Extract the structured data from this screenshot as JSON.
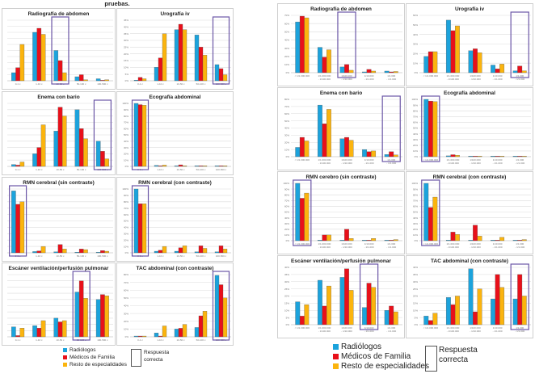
{
  "header": {
    "left_title_fragment": "pruebas."
  },
  "colors": {
    "radiologos": "#1ca3dc",
    "medicos_familia": "#e8101a",
    "resto": "#fbb40e",
    "correct_box": "#6b56a6",
    "grid": "#d9d9d9"
  },
  "legend": {
    "items": [
      {
        "label": "Radiólogos",
        "color": "#1ca3dc"
      },
      {
        "label": "Médicos de Familia",
        "color": "#e8101a"
      },
      {
        "label": "Resto de especialidades",
        "color": "#fbb40e"
      }
    ],
    "correct_label_1": "Respuesta",
    "correct_label_2": "correcta"
  },
  "chart_data": [
    {
      "panel": "left",
      "type": "bar",
      "title": "Radiografía de abdomen",
      "categories": [
        "0-1 c",
        "1-10 c",
        "10-50 c",
        "50-100 c",
        "100-500 c"
      ],
      "ylim": [
        0,
        60
      ],
      "yticks": [],
      "correct_index": 2,
      "series": [
        {
          "name": "Radiólogos",
          "values": [
            8,
            48,
            30,
            4,
            2
          ]
        },
        {
          "name": "Médicos de Familia",
          "values": [
            13,
            52,
            20,
            6,
            0.5
          ]
        },
        {
          "name": "Resto de especialidades",
          "values": [
            36,
            46,
            8,
            1,
            1
          ]
        }
      ]
    },
    {
      "panel": "left",
      "type": "bar",
      "title": "Urografía iv",
      "categories": [
        "0-1 c",
        "1-10 c",
        "10-50 c",
        "50-100 c",
        "100-500 c"
      ],
      "ylim": [
        0,
        45
      ],
      "yticks": [
        "0%",
        "5%",
        "10%",
        "15%",
        "20%",
        "25%",
        "30%",
        "35%",
        "40%",
        "45%"
      ],
      "correct_index": 4,
      "series": [
        {
          "name": "Radiólogos",
          "values": [
            0.5,
            10,
            38,
            34,
            12
          ]
        },
        {
          "name": "Médicos de Familia",
          "values": [
            2.5,
            17,
            42,
            25,
            9
          ]
        },
        {
          "name": "Resto de especialidades",
          "values": [
            1.5,
            35,
            38,
            19,
            4.5
          ]
        }
      ]
    },
    {
      "panel": "left",
      "type": "bar",
      "title": "Enema con bario",
      "categories": [
        "0-1 c",
        "1-10 c",
        "10-50 c",
        "50-100 c",
        "100-500 c"
      ],
      "ylim": [
        0,
        50
      ],
      "yticks": [],
      "correct_index": 4,
      "series": [
        {
          "name": "Radiólogos",
          "values": [
            1.5,
            10,
            28,
            45,
            20
          ]
        },
        {
          "name": "Médicos de Familia",
          "values": [
            1,
            15,
            47,
            30,
            12
          ]
        },
        {
          "name": "Resto de especialidades",
          "values": [
            3.5,
            33,
            40,
            22,
            6
          ]
        }
      ]
    },
    {
      "panel": "left",
      "type": "bar",
      "title": "Ecografía abdominal",
      "categories": [
        "0-1 c",
        "1-10 c",
        "10-50 c",
        "50-100 c",
        "100-500 c"
      ],
      "ylim": [
        0,
        100
      ],
      "yticks": [
        "0%",
        "10%",
        "20%",
        "30%",
        "40%",
        "50%",
        "60%",
        "70%",
        "80%",
        "90%",
        "100%"
      ],
      "correct_index": 0,
      "series": [
        {
          "name": "Radiólogos",
          "values": [
            100,
            1.5,
            1,
            1,
            1
          ]
        },
        {
          "name": "Médicos de Familia",
          "values": [
            98,
            1,
            2.5,
            1,
            1
          ]
        },
        {
          "name": "Resto de especialidades",
          "values": [
            97,
            2,
            1,
            1,
            1
          ]
        }
      ]
    },
    {
      "panel": "left",
      "type": "bar",
      "title": "RMN  cerebral (sin contraste)",
      "categories": [
        "0-1 c",
        "1-10 c",
        "10-50 c",
        "50-100 c",
        "100-500 c"
      ],
      "ylim": [
        0,
        100
      ],
      "yticks": [],
      "correct_index": 0,
      "series": [
        {
          "name": "Radiólogos",
          "values": [
            97,
            2,
            1.5,
            1,
            1
          ]
        },
        {
          "name": "Médicos de Familia",
          "values": [
            76,
            3,
            13,
            6,
            3.5
          ]
        },
        {
          "name": "Resto de especialidades",
          "values": [
            80,
            10,
            6,
            5,
            2.5
          ]
        }
      ]
    },
    {
      "panel": "left",
      "type": "bar",
      "title": "RMN cerebral (con contraste)",
      "categories": [
        "0-1 c",
        "1-10 c",
        "10-50 c",
        "50-100 c",
        "100-500 c"
      ],
      "ylim": [
        0,
        100
      ],
      "yticks": [
        "0%",
        "10%",
        "20%",
        "30%",
        "40%",
        "50%",
        "60%",
        "70%",
        "80%",
        "90%",
        "100%"
      ],
      "correct_index": 0,
      "series": [
        {
          "name": "Radiólogos",
          "values": [
            100,
            2.5,
            2.5,
            1.5,
            1.5
          ]
        },
        {
          "name": "Médicos de Familia",
          "values": [
            77,
            4,
            8,
            11,
            11
          ]
        },
        {
          "name": "Resto de especialidades",
          "values": [
            77,
            10,
            11,
            7,
            6
          ]
        }
      ]
    },
    {
      "panel": "left",
      "type": "bar",
      "title": "Escáner ventilación/perfusión pulmonar",
      "categories": [
        "0-1 c",
        "1-10 c",
        "10-50 c",
        "50-100 c",
        "100-500 c"
      ],
      "ylim": [
        0,
        50
      ],
      "yticks": [],
      "correct_index": 3,
      "series": [
        {
          "name": "Radiólogos",
          "values": [
            8,
            9,
            15,
            36,
            30
          ]
        },
        {
          "name": "Médicos de Familia",
          "values": [
            1,
            7,
            12,
            45,
            34
          ]
        },
        {
          "name": "Resto de especialidades",
          "values": [
            7,
            13,
            13,
            31,
            33
          ]
        }
      ]
    },
    {
      "panel": "left",
      "type": "bar",
      "title": "TAC abdominal (con contraste)",
      "categories": [
        "0-1 c",
        "1-10 c",
        "10-50 c",
        "50-100 c",
        "100-500 c"
      ],
      "ylim": [
        0,
        80
      ],
      "yticks": [
        "0%",
        "10%",
        "20%",
        "30%",
        "40%",
        "50%",
        "60%",
        "70%",
        "80%"
      ],
      "correct_index": 4,
      "series": [
        {
          "name": "Radiólogos",
          "values": [
            1,
            5,
            10,
            12,
            79
          ]
        },
        {
          "name": "Médicos de Familia",
          "values": [
            1,
            1,
            11,
            27,
            67
          ]
        },
        {
          "name": "Resto de especialidades",
          "values": [
            1,
            14,
            16,
            33,
            50
          ]
        }
      ]
    },
    {
      "panel": "right",
      "type": "bar",
      "title": "Radiografía de abdomen",
      "categories": [
        "< 1/1.000.000",
        "1/1.000.000 - 1/100.000",
        "1/100.000 - 1/10.000",
        "1/10.000 - 1/1.000",
        "1/1.000 - 1/1.000"
      ],
      "ylim": [
        0,
        70
      ],
      "yticks": [
        "0%",
        "10%",
        "20%",
        "30%",
        "40%",
        "50%",
        "60%",
        "70%"
      ],
      "correct_index": 2,
      "series": [
        {
          "name": "Radiólogos",
          "values": [
            62,
            31,
            7,
            1,
            2
          ]
        },
        {
          "name": "Médicos de Familia",
          "values": [
            69,
            19,
            10,
            4,
            1
          ]
        },
        {
          "name": "Resto de especialidades",
          "values": [
            67,
            28,
            3,
            2,
            1.5
          ]
        }
      ]
    },
    {
      "panel": "right",
      "type": "bar",
      "title": "Urografía iv",
      "categories": [
        "< 1/1.000.000",
        "1/1.000.000 - 1/100.000",
        "1/100.000 - 1/10.000",
        "1/10.000 - 1/1.000",
        "1/1.000 - 1/1.000"
      ],
      "ylim": [
        0,
        60
      ],
      "yticks": [
        "0%",
        "10%",
        "20%",
        "30%",
        "40%",
        "50%",
        "60%"
      ],
      "correct_index": 4,
      "series": [
        {
          "name": "Radiólogos",
          "values": [
            17,
            55,
            23,
            8,
            2
          ]
        },
        {
          "name": "Médicos de Familia",
          "values": [
            22,
            44,
            25,
            4,
            7
          ]
        },
        {
          "name": "Resto de especialidades",
          "values": [
            22,
            49,
            21,
            9,
            2
          ]
        }
      ]
    },
    {
      "panel": "right",
      "type": "bar",
      "title": "Enema con bario",
      "categories": [
        "< 1/1.000.000",
        "1/1.000.000 - 1/100.000",
        "1/100.000 - 1/10.000",
        "1/10.000 - 1/1.000",
        "1/1.000 - 1/1.000"
      ],
      "ylim": [
        0,
        80
      ],
      "yticks": [
        "0%",
        "10%",
        "20%",
        "30%",
        "40%",
        "50%",
        "60%",
        "70%",
        "80%"
      ],
      "correct_index": 4,
      "series": [
        {
          "name": "Radiólogos",
          "values": [
            13,
            72,
            25,
            10,
            3
          ]
        },
        {
          "name": "Médicos de Familia",
          "values": [
            27,
            46,
            27,
            7,
            7
          ]
        },
        {
          "name": "Resto de especialidades",
          "values": [
            22,
            66,
            23,
            8,
            2.5
          ]
        }
      ]
    },
    {
      "panel": "right",
      "type": "bar",
      "title": "Ecografía abdominal",
      "categories": [
        "< 1/1.000.000",
        "1/1.000.000 - 1/100.000",
        "1/100.000 - 1/10.000",
        "1/10.000 - 1/1.000",
        "1/1.000 - 1/1.000"
      ],
      "ylim": [
        0,
        100
      ],
      "yticks": [
        "0%",
        "10%",
        "20%",
        "30%",
        "40%",
        "50%",
        "60%",
        "70%",
        "80%",
        "90%",
        "100%"
      ],
      "correct_index": 0,
      "series": [
        {
          "name": "Radiólogos",
          "values": [
            100,
            1.5,
            1,
            1,
            1
          ]
        },
        {
          "name": "Médicos de Familia",
          "values": [
            97,
            3.5,
            1,
            1,
            1
          ]
        },
        {
          "name": "Resto de especialidades",
          "values": [
            96,
            2.5,
            1,
            1,
            1
          ]
        }
      ]
    },
    {
      "panel": "right",
      "type": "bar",
      "title": "RMN  cerebro (sin contraste)",
      "categories": [
        "< 1/1.000.000",
        "1/1.000.000 - 1/100.000",
        "1/100.000 - 1/10.000",
        "1/10.000 - 1/1.000",
        "1/1.000 - 1/1.000"
      ],
      "ylim": [
        0,
        100
      ],
      "yticks": [
        "0%",
        "10%",
        "20%",
        "30%",
        "40%",
        "50%",
        "60%",
        "70%",
        "80%",
        "90%",
        "100%"
      ],
      "correct_index": 0,
      "series": [
        {
          "name": "Radiólogos",
          "values": [
            100,
            1,
            1,
            1,
            1
          ]
        },
        {
          "name": "Médicos de Familia",
          "values": [
            74,
            10,
            20,
            1,
            1
          ]
        },
        {
          "name": "Resto de especialidades",
          "values": [
            83,
            10,
            4,
            4,
            2
          ]
        }
      ]
    },
    {
      "panel": "right",
      "type": "bar",
      "title": "RMN cerebral (con contraste)",
      "categories": [
        "< 1/1.000.000",
        "1/1.000.000 - 1/100.000",
        "1/100.000 - 1/10.000",
        "1/10.000 - 1/1.000",
        "1/1.000 - 1/1.000"
      ],
      "ylim": [
        0,
        100
      ],
      "yticks": [
        "0%",
        "10%",
        "20%",
        "30%",
        "40%",
        "50%",
        "60%",
        "70%",
        "80%",
        "90%",
        "100%"
      ],
      "correct_index": 0,
      "series": [
        {
          "name": "Radiólogos",
          "values": [
            100,
            1,
            1,
            1,
            1
          ]
        },
        {
          "name": "Médicos de Familia",
          "values": [
            58,
            15,
            27,
            1,
            1
          ]
        },
        {
          "name": "Resto de especialidades",
          "values": [
            76,
            11,
            8,
            6,
            2
          ]
        }
      ]
    },
    {
      "panel": "right",
      "type": "bar",
      "title": "Escáner ventilación/perfusión pulmonar",
      "categories": [
        "< 1/1.000.000",
        "1/1.000.000 - 1/100.000",
        "1/100.000 - 1/10.000",
        "1/10.000 - 1/1.000",
        "1/1.000 - 1/1.000"
      ],
      "ylim": [
        0,
        40
      ],
      "yticks": [
        "0%",
        "5%",
        "10%",
        "15%",
        "20%",
        "25%",
        "30%",
        "35%",
        "40%"
      ],
      "correct_index": 3,
      "series": [
        {
          "name": "Radiólogos",
          "values": [
            16,
            31,
            33,
            12,
            10
          ]
        },
        {
          "name": "Médicos de Familia",
          "values": [
            6,
            13,
            39,
            29,
            13
          ]
        },
        {
          "name": "Resto de especialidades",
          "values": [
            14,
            27,
            24,
            26,
            9
          ]
        }
      ]
    },
    {
      "panel": "right",
      "type": "bar",
      "title": "TAC abdominal (con contraste)",
      "categories": [
        "< 1/1.000.000",
        "1/1.000.000 - 1/100.000",
        "1/100.000 - 1/10.000",
        "1/10.000 - 1/1.000",
        "1/1.000 - 1/1.000"
      ],
      "ylim": [
        0,
        40
      ],
      "yticks": [
        "0%",
        "5%",
        "10%",
        "15%",
        "20%",
        "25%",
        "30%",
        "35%",
        "40%"
      ],
      "correct_index": 4,
      "series": [
        {
          "name": "Radiólogos",
          "values": [
            6,
            19,
            39,
            18,
            18
          ]
        },
        {
          "name": "Médicos de Familia",
          "values": [
            3,
            14,
            9,
            35,
            35
          ]
        },
        {
          "name": "Resto de especialidades",
          "values": [
            8,
            20,
            25,
            26,
            20
          ]
        }
      ]
    }
  ]
}
